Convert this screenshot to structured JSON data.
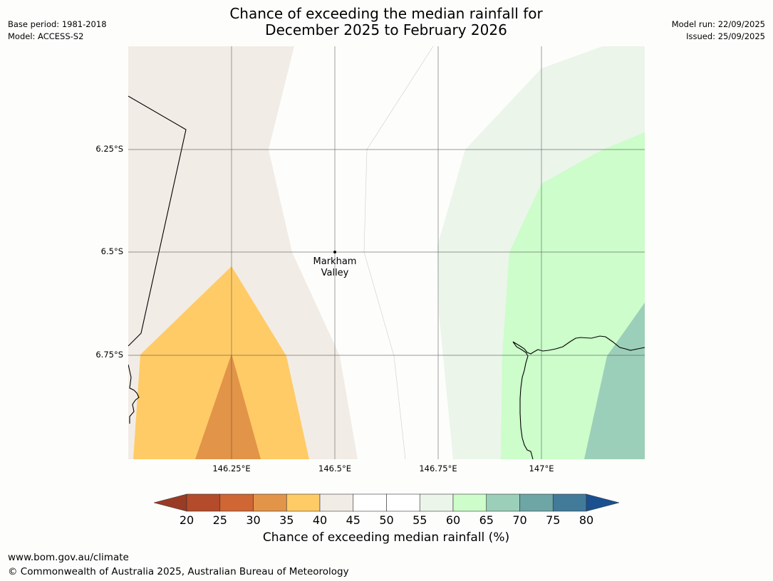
{
  "title": {
    "line1": "Chance of exceeding the median rainfall for",
    "line2": "December 2025 to February 2026"
  },
  "meta_left": {
    "base_period": "Base period: 1981-2018",
    "model": "Model: ACCESS-S2"
  },
  "meta_right": {
    "model_run": "Model run: 22/09/2025",
    "issued": "Issued: 25/09/2025"
  },
  "axes": {
    "y_ticks": [
      "6.25°S",
      "6.5°S",
      "6.75°S"
    ],
    "x_ticks": [
      "146.25°E",
      "146.5°E",
      "146.75°E",
      "147°E"
    ]
  },
  "place": {
    "line1": "Markham",
    "line2": "Valley"
  },
  "colorbar": {
    "labels": [
      "20",
      "25",
      "30",
      "35",
      "40",
      "45",
      "50",
      "55",
      "60",
      "65",
      "70",
      "75",
      "80"
    ],
    "low_extend_color": "#9a3b25",
    "high_extend_color": "#1a5090",
    "colors": [
      "#b44b2a",
      "#cf6633",
      "#e29448",
      "#ffcb66",
      "#f2ece6",
      "#ffffff",
      "#ffffff",
      "#ebf5ea",
      "#ccfdca",
      "#9ccfb9",
      "#6ea5a5",
      "#427a9a"
    ],
    "title": "Chance of exceeding median rainfall (%)"
  },
  "footer": {
    "url": "www.bom.gov.au/climate",
    "copyright": "© Commonwealth of Australia 2025, Australian Bureau of Meteorology"
  }
}
